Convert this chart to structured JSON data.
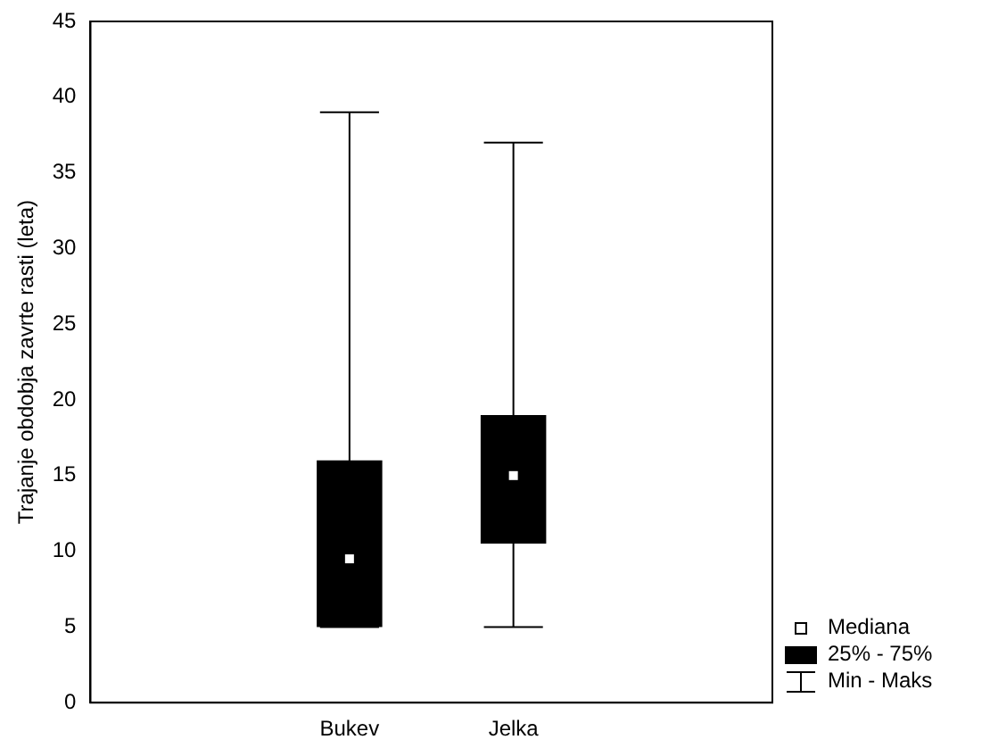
{
  "chart_data": {
    "type": "box",
    "ylabel": "Trajanje obdobja zavrte rasti (leta)",
    "categories": [
      "Bukev",
      "Jelka"
    ],
    "boxes": [
      {
        "low": 5,
        "q1": 5,
        "median": 9.5,
        "q3": 16,
        "high": 39
      },
      {
        "low": 5,
        "q1": 10.5,
        "median": 15,
        "q3": 19,
        "high": 37
      }
    ],
    "color": "#000000",
    "ylim": [
      0,
      45
    ],
    "yticks": [
      0,
      5,
      10,
      15,
      20,
      25,
      30,
      35,
      40,
      45
    ],
    "grid": false,
    "annotations": [
      "Mediana",
      "25% - 75%",
      "Min - Maks"
    ]
  }
}
